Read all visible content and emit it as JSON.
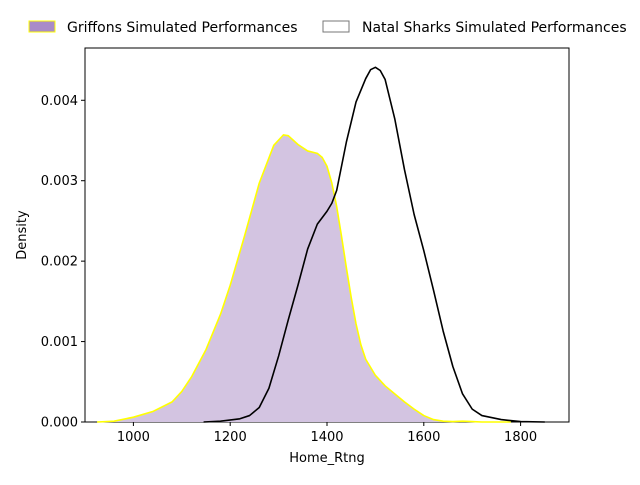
{
  "chart_data": {
    "type": "area",
    "xlabel": "Home_Rtng",
    "ylabel": "Density",
    "xlim": [
      900,
      1900
    ],
    "ylim": [
      0,
      0.00465
    ],
    "xticks": [
      1000,
      1200,
      1400,
      1600,
      1800
    ],
    "yticks": [
      0.0,
      0.001,
      0.002,
      0.003,
      0.004
    ],
    "ytick_labels": [
      "0.000",
      "0.001",
      "0.002",
      "0.003",
      "0.004"
    ],
    "grid": false,
    "legend_position": "top, outside plot",
    "series": [
      {
        "name": "Griffons Simulated Performances",
        "style": "filled",
        "fill_color": "#d3c4e1",
        "legend_fill_color": "#a98bc8",
        "line_color": "#ffff00",
        "x": [
          925,
          960,
          1000,
          1040,
          1080,
          1100,
          1120,
          1150,
          1180,
          1200,
          1230,
          1260,
          1290,
          1310,
          1320,
          1340,
          1360,
          1380,
          1390,
          1400,
          1410,
          1420,
          1430,
          1440,
          1450,
          1460,
          1470,
          1480,
          1500,
          1520,
          1540,
          1560,
          1580,
          1600,
          1620,
          1640,
          1660,
          1680,
          1700,
          1720,
          1760,
          1780
        ],
        "y": [
          0.0,
          1e-05,
          6e-05,
          0.00013,
          0.00025,
          0.00038,
          0.00056,
          0.0009,
          0.00134,
          0.0017,
          0.00232,
          0.00297,
          0.00344,
          0.00357,
          0.00356,
          0.00345,
          0.00337,
          0.00334,
          0.00329,
          0.00318,
          0.00297,
          0.00268,
          0.00231,
          0.00192,
          0.00155,
          0.00122,
          0.00096,
          0.00078,
          0.00058,
          0.00045,
          0.00035,
          0.00025,
          0.00016,
          8e-05,
          3e-05,
          1e-05,
          5e-06,
          1e-05,
          5e-06,
          0.0,
          0.0,
          0.0
        ]
      },
      {
        "name": "Natal Sharks Simulated Performances",
        "style": "line",
        "fill_color": "none",
        "legend_fill_color": "none",
        "line_color": "#000000",
        "x": [
          1145,
          1180,
          1220,
          1240,
          1260,
          1280,
          1300,
          1320,
          1340,
          1360,
          1380,
          1400,
          1410,
          1420,
          1440,
          1460,
          1480,
          1490,
          1500,
          1510,
          1520,
          1540,
          1560,
          1580,
          1600,
          1620,
          1640,
          1660,
          1680,
          1700,
          1720,
          1760,
          1800,
          1850
        ],
        "y": [
          0.0,
          1e-05,
          4e-05,
          8e-05,
          0.00018,
          0.00042,
          0.00082,
          0.00127,
          0.0017,
          0.00215,
          0.00246,
          0.00262,
          0.00272,
          0.00288,
          0.00348,
          0.00398,
          0.00427,
          0.00438,
          0.00441,
          0.00437,
          0.00426,
          0.00377,
          0.00314,
          0.00258,
          0.00213,
          0.00164,
          0.00113,
          0.00069,
          0.00035,
          0.00016,
          8e-05,
          3e-05,
          5e-06,
          0.0
        ]
      }
    ]
  }
}
